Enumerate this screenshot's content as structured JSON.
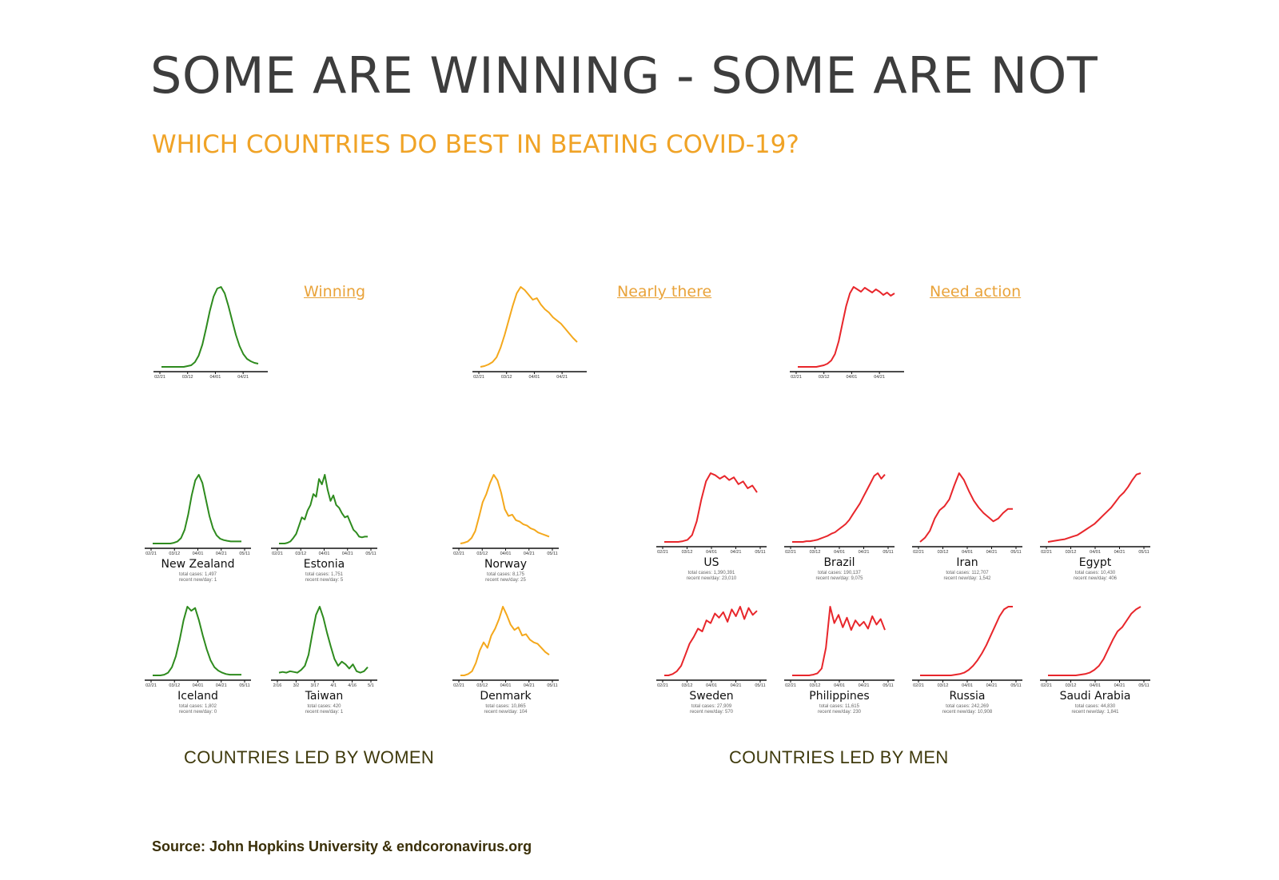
{
  "title": "SOME ARE WINNING - SOME ARE NOT",
  "subtitle": "WHICH COUNTRIES DO BEST IN BEATING COVID-19?",
  "group_labels": {
    "women": "COUNTRIES LED BY WOMEN",
    "men": "COUNTRIES LED BY MEN"
  },
  "source": "Source: John Hopkins University & endcoronavirus.org",
  "colors": {
    "green": "#2e8b1e",
    "orange": "#f4a81c",
    "red": "#e8262b"
  },
  "chart_data": [
    {
      "type": "line",
      "name": "Winning",
      "color": "green",
      "x_ticks": [
        "02/21",
        "03/12",
        "04/01",
        "04/21"
      ],
      "y": [
        0,
        0,
        0,
        0,
        0,
        0,
        0,
        1,
        2,
        6,
        14,
        28,
        48,
        70,
        88,
        98,
        100,
        92,
        76,
        58,
        40,
        26,
        16,
        10,
        7,
        5,
        4
      ]
    },
    {
      "type": "line",
      "name": "Nearly there",
      "color": "orange",
      "x_ticks": [
        "02/21",
        "03/12",
        "04/01",
        "04/21"
      ],
      "y": [
        0,
        1,
        3,
        6,
        12,
        24,
        40,
        58,
        76,
        92,
        100,
        96,
        90,
        84,
        86,
        78,
        72,
        68,
        62,
        58,
        54,
        48,
        42,
        36,
        31
      ]
    },
    {
      "type": "line",
      "name": "Need action",
      "color": "red",
      "x_ticks": [
        "02/21",
        "03/12",
        "04/01",
        "04/21"
      ],
      "y": [
        0,
        0,
        0,
        0,
        0,
        0,
        1,
        2,
        4,
        8,
        16,
        32,
        54,
        76,
        92,
        100,
        97,
        94,
        99,
        96,
        93,
        97,
        94,
        90,
        93,
        89,
        92
      ]
    },
    {
      "type": "line",
      "name": "New Zealand",
      "color": "green",
      "x_ticks": [
        "02/21",
        "03/12",
        "04/01",
        "04/21",
        "05/11"
      ],
      "total_cases": "total cases: 1,497",
      "recent": "recent new/day: 1",
      "y": [
        0,
        0,
        0,
        0,
        0,
        0,
        1,
        3,
        8,
        20,
        42,
        70,
        92,
        100,
        88,
        64,
        40,
        22,
        12,
        7,
        5,
        4,
        3,
        3,
        3,
        3
      ]
    },
    {
      "type": "line",
      "name": "Estonia",
      "color": "green",
      "x_ticks": [
        "02/21",
        "03/12",
        "04/01",
        "04/21",
        "05/11"
      ],
      "total_cases": "total cases: 1,751",
      "recent": "recent new/day: 5",
      "y": [
        0,
        0,
        0,
        1,
        3,
        8,
        14,
        26,
        38,
        35,
        48,
        56,
        72,
        68,
        94,
        86,
        100,
        78,
        62,
        70,
        56,
        52,
        44,
        38,
        40,
        30,
        20,
        16,
        10,
        9,
        10,
        10
      ]
    },
    {
      "type": "line",
      "name": "Norway",
      "color": "orange",
      "x_ticks": [
        "02/21",
        "03/12",
        "04/01",
        "04/21",
        "05/11"
      ],
      "total_cases": "total cases: 8,175",
      "recent": "recent new/day: 25",
      "y": [
        0,
        1,
        3,
        8,
        18,
        38,
        60,
        72,
        88,
        100,
        92,
        74,
        50,
        40,
        42,
        34,
        32,
        28,
        26,
        22,
        20,
        16,
        14,
        12,
        10
      ]
    },
    {
      "type": "line",
      "name": "Iceland",
      "color": "green",
      "x_ticks": [
        "02/21",
        "03/12",
        "04/01",
        "04/21",
        "05/11"
      ],
      "total_cases": "total cases: 1,802",
      "recent": "recent new/day: 0",
      "y": [
        0,
        0,
        0,
        1,
        4,
        12,
        28,
        52,
        80,
        100,
        94,
        98,
        80,
        58,
        38,
        22,
        12,
        7,
        4,
        2,
        1,
        1,
        1,
        1
      ]
    },
    {
      "type": "line",
      "name": "Taiwan",
      "color": "green",
      "x_ticks": [
        "2/16",
        "3/2",
        "3/17",
        "4/1",
        "4/16",
        "5/1"
      ],
      "total_cases": "total cases: 420",
      "recent": "recent new/day: 1",
      "y": [
        4,
        5,
        4,
        6,
        5,
        4,
        8,
        14,
        30,
        60,
        88,
        100,
        84,
        62,
        42,
        24,
        14,
        20,
        16,
        10,
        16,
        6,
        4,
        6,
        12
      ]
    },
    {
      "type": "line",
      "name": "Denmark",
      "color": "orange",
      "x_ticks": [
        "02/21",
        "03/12",
        "04/01",
        "04/21",
        "05/11"
      ],
      "total_cases": "total cases: 10,865",
      "recent": "recent new/day: 104",
      "y": [
        0,
        0,
        2,
        6,
        18,
        36,
        48,
        40,
        58,
        68,
        82,
        100,
        88,
        74,
        66,
        70,
        58,
        60,
        52,
        48,
        46,
        40,
        34,
        30
      ]
    },
    {
      "type": "line",
      "name": "US",
      "color": "red",
      "x_ticks": [
        "02/21",
        "03/12",
        "04/01",
        "04/21",
        "05/11"
      ],
      "total_cases": "total cases: 1,390,391",
      "recent": "recent new/day: 23,010",
      "y": [
        0,
        0,
        0,
        0,
        1,
        3,
        10,
        30,
        62,
        88,
        100,
        97,
        92,
        96,
        90,
        94,
        84,
        88,
        78,
        82,
        72
      ]
    },
    {
      "type": "line",
      "name": "Brazil",
      "color": "red",
      "x_ticks": [
        "02/21",
        "03/12",
        "04/01",
        "04/21",
        "05/11"
      ],
      "total_cases": "total cases: 190,137",
      "recent": "recent new/day: 9,075",
      "y": [
        0,
        0,
        0,
        0,
        1,
        1,
        2,
        3,
        5,
        7,
        9,
        12,
        14,
        18,
        22,
        26,
        32,
        40,
        48,
        56,
        66,
        76,
        86,
        96,
        100,
        92,
        98
      ]
    },
    {
      "type": "line",
      "name": "Iran",
      "color": "red",
      "x_ticks": [
        "02/21",
        "03/12",
        "04/01",
        "04/21",
        "05/11"
      ],
      "total_cases": "total cases: 112,707",
      "recent": "recent new/day: 1,542",
      "y": [
        0,
        6,
        16,
        34,
        46,
        52,
        62,
        82,
        100,
        90,
        74,
        60,
        50,
        42,
        36,
        30,
        34,
        42,
        48,
        48
      ]
    },
    {
      "type": "line",
      "name": "Egypt",
      "color": "red",
      "x_ticks": [
        "02/21",
        "03/12",
        "04/01",
        "04/21",
        "05/11"
      ],
      "total_cases": "total cases: 10,430",
      "recent": "recent new/day: 406",
      "y": [
        0,
        1,
        2,
        3,
        4,
        6,
        8,
        10,
        14,
        18,
        22,
        26,
        32,
        38,
        44,
        50,
        58,
        66,
        72,
        80,
        90,
        98,
        100
      ]
    },
    {
      "type": "line",
      "name": "Sweden",
      "color": "red",
      "x_ticks": [
        "02/21",
        "03/12",
        "04/01",
        "04/21",
        "05/11"
      ],
      "total_cases": "total cases: 27,909",
      "recent": "recent new/day: 570",
      "y": [
        0,
        0,
        2,
        6,
        14,
        30,
        46,
        56,
        68,
        64,
        80,
        76,
        90,
        84,
        92,
        78,
        96,
        86,
        100,
        82,
        98,
        88,
        94
      ]
    },
    {
      "type": "line",
      "name": "Philippines",
      "color": "red",
      "x_ticks": [
        "02/21",
        "03/12",
        "04/01",
        "04/21",
        "05/11"
      ],
      "total_cases": "total cases: 11,615",
      "recent": "recent new/day: 230",
      "y": [
        0,
        0,
        0,
        0,
        0,
        1,
        3,
        10,
        40,
        100,
        76,
        88,
        70,
        84,
        66,
        80,
        72,
        78,
        68,
        86,
        74,
        82,
        66
      ]
    },
    {
      "type": "line",
      "name": "Russia",
      "color": "red",
      "x_ticks": [
        "02/21",
        "03/12",
        "04/01",
        "04/21",
        "05/11"
      ],
      "total_cases": "total cases: 242,269",
      "recent": "recent new/day: 10,908",
      "y": [
        0,
        0,
        0,
        0,
        0,
        0,
        0,
        0,
        1,
        2,
        4,
        8,
        14,
        22,
        32,
        44,
        58,
        72,
        86,
        96,
        100,
        100
      ]
    },
    {
      "type": "line",
      "name": "Saudi Arabia",
      "color": "red",
      "x_ticks": [
        "02/21",
        "03/12",
        "04/01",
        "04/21",
        "05/11"
      ],
      "total_cases": "total cases: 44,830",
      "recent": "recent new/day: 1,841",
      "y": [
        0,
        0,
        0,
        0,
        0,
        0,
        0,
        1,
        2,
        4,
        8,
        14,
        24,
        38,
        52,
        64,
        70,
        80,
        90,
        96,
        100
      ]
    }
  ]
}
